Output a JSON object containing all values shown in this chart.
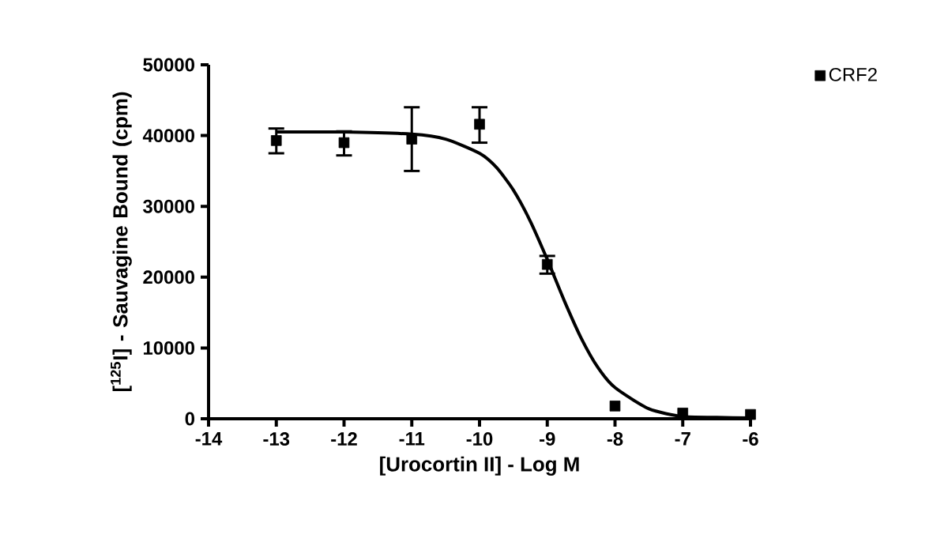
{
  "chart_data": {
    "type": "scatter",
    "xlabel": "[Urocortin II] - Log M",
    "ylabel": "[$^{125}$I] - Sauvagine Bound (cpm)",
    "xlim": [
      -14,
      -6
    ],
    "xticks": [
      -14,
      -13,
      -12,
      -11,
      -10,
      -9,
      -8,
      -7,
      -6
    ],
    "ylim": [
      0,
      50000
    ],
    "yticks": [
      0,
      10000,
      20000,
      30000,
      40000,
      50000
    ],
    "legend": "top right",
    "series": [
      {
        "name": "CRF2",
        "marker": "square",
        "color": "#000000",
        "x": [
          -13,
          -12,
          -11,
          -10,
          -9,
          -8,
          -7,
          -6
        ],
        "values": [
          39300,
          39000,
          39500,
          41600,
          21800,
          1800,
          800,
          600
        ],
        "errors": [
          [
            37500,
            41000
          ],
          [
            37200,
            40600
          ],
          [
            35000,
            44000
          ],
          [
            39000,
            44000
          ],
          [
            20500,
            23000
          ],
          null,
          null,
          null
        ]
      },
      {
        "type": "line",
        "marker": "none",
        "color": "#000000",
        "x": [
          -13,
          -12,
          -11,
          -10.5,
          -10,
          -9.75,
          -9.5,
          -9.25,
          -9,
          -8.75,
          -8.5,
          -8.25,
          -8,
          -7.5,
          -7,
          -6.5,
          -6
        ],
        "values": [
          40500,
          40500,
          40200,
          39500,
          37500,
          35500,
          32300,
          27900,
          22500,
          16700,
          11400,
          7200,
          4400,
          1400,
          300,
          200,
          100
        ]
      }
    ]
  }
}
